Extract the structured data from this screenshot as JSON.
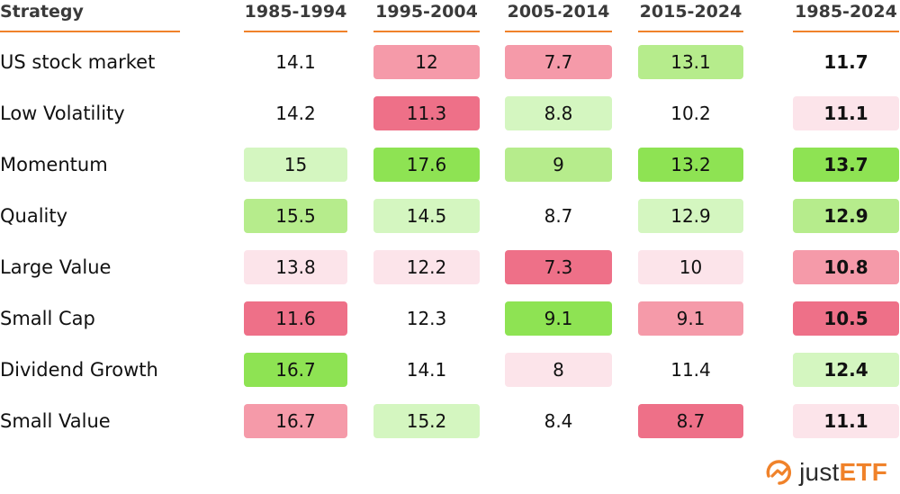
{
  "chart_data": {
    "type": "table",
    "columns": [
      "Strategy",
      "1985-1994",
      "1995-2004",
      "2005-2014",
      "2015-2024",
      "1985-2024"
    ],
    "rows": [
      {
        "label": "US stock market",
        "values": [
          "14.1",
          "12",
          "7.7",
          "13.1",
          "11.7"
        ],
        "colors": [
          "none",
          "#f59aa9",
          "#f59aa9",
          "#b6ec8c",
          "none"
        ]
      },
      {
        "label": "Low Volatility",
        "values": [
          "14.2",
          "11.3",
          "8.8",
          "10.2",
          "11.1"
        ],
        "colors": [
          "none",
          "#ee7088",
          "#d4f6c0",
          "none",
          "#fce4ea"
        ]
      },
      {
        "label": "Momentum",
        "values": [
          "15",
          "17.6",
          "9",
          "13.2",
          "13.7"
        ],
        "colors": [
          "#d4f6c0",
          "#8ee353",
          "#b6ec8c",
          "#8ee353",
          "#8ee353"
        ]
      },
      {
        "label": "Quality",
        "values": [
          "15.5",
          "14.5",
          "8.7",
          "12.9",
          "12.9"
        ],
        "colors": [
          "#b6ec8c",
          "#d4f6c0",
          "none",
          "#d4f6c0",
          "#b6ec8c"
        ]
      },
      {
        "label": "Large Value",
        "values": [
          "13.8",
          "12.2",
          "7.3",
          "10",
          "10.8"
        ],
        "colors": [
          "#fce4ea",
          "#fce4ea",
          "#ee7088",
          "#fce4ea",
          "#f59aa9"
        ]
      },
      {
        "label": "Small Cap",
        "values": [
          "11.6",
          "12.3",
          "9.1",
          "9.1",
          "10.5"
        ],
        "colors": [
          "#ee7088",
          "none",
          "#8ee353",
          "#f59aa9",
          "#ee7088"
        ]
      },
      {
        "label": "Dividend Growth",
        "values": [
          "16.7",
          "14.1",
          "8",
          "11.4",
          "12.4"
        ],
        "colors": [
          "#8ee353",
          "none",
          "#fce4ea",
          "none",
          "#d4f6c0"
        ]
      },
      {
        "label": "Small Value",
        "values": [
          "16.7",
          "15.2",
          "8.4",
          "8.7",
          "11.1"
        ],
        "colors": [
          "#f59aa9",
          "#d4f6c0",
          "none",
          "#ee7088",
          "#fce4ea"
        ]
      }
    ],
    "last_column_bold": true,
    "accent_color": "#f0822a"
  },
  "logo": {
    "text_prefix": "just",
    "text_suffix": "ETF",
    "icon": "justetf-logo-icon"
  }
}
